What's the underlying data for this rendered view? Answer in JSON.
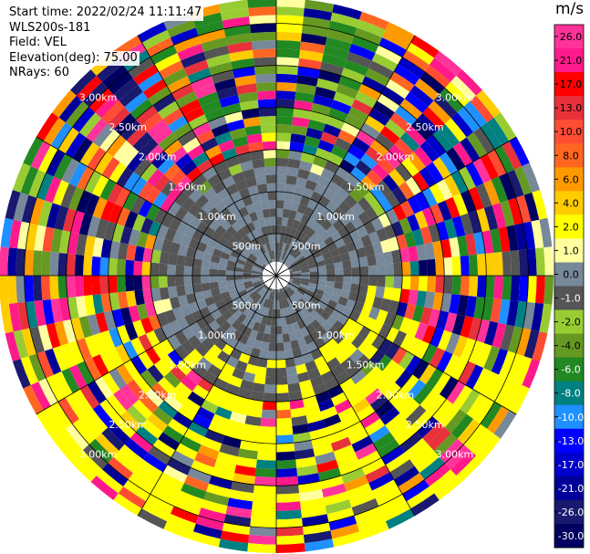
{
  "info": {
    "start_time": "Start time: 2022/02/24 11:11:47",
    "instrument": "WLS200s-181",
    "field": "Field: VEL",
    "elevation": "Elevation(deg): 75.00",
    "nrays": "NRays: 60"
  },
  "chart_data": {
    "type": "heatmap",
    "projection": "polar-ppi",
    "nrays": 60,
    "range_max_m": 3300,
    "gate_start_m": 100,
    "gate_step_m": 100,
    "ring_labels": [
      "500m",
      "1.00km",
      "1.50km",
      "2.00km",
      "2.50km",
      "3.00km"
    ],
    "ring_ranges_m": [
      500,
      1000,
      1500,
      2000,
      2500,
      3000
    ],
    "colorbar": {
      "unit": "m/s",
      "tick_labels": [
        "26.0",
        "21.0",
        "17.0",
        "13.0",
        "10.0",
        "8.0",
        "6.0",
        "4.0",
        "2.0",
        "1.0",
        "0.0",
        "-1.0",
        "-2.0",
        "-4.0",
        "-6.0",
        "-8.0",
        "-10.0",
        "-13.0",
        "-17.0",
        "-21.0",
        "-26.0",
        "-30.0"
      ],
      "bins": [
        {
          "min": 26,
          "max": 30,
          "color": "#ff3399"
        },
        {
          "min": 21,
          "max": 26,
          "color": "#ff1a8c"
        },
        {
          "min": 17,
          "max": 21,
          "color": "#ff0000"
        },
        {
          "min": 13,
          "max": 17,
          "color": "#e8313b"
        },
        {
          "min": 10,
          "max": 13,
          "color": "#ff4d33"
        },
        {
          "min": 8,
          "max": 10,
          "color": "#ff6622"
        },
        {
          "min": 6,
          "max": 8,
          "color": "#ff9900"
        },
        {
          "min": 4,
          "max": 6,
          "color": "#ffcc00"
        },
        {
          "min": 2,
          "max": 4,
          "color": "#ffff00"
        },
        {
          "min": 1,
          "max": 2,
          "color": "#ffffa0"
        },
        {
          "min": 0,
          "max": 1,
          "color": "#778899"
        },
        {
          "min": -1,
          "max": 0,
          "color": "#555555"
        },
        {
          "min": -2,
          "max": -1,
          "color": "#99cc33"
        },
        {
          "min": -4,
          "max": -2,
          "color": "#669922"
        },
        {
          "min": -6,
          "max": -4,
          "color": "#228822"
        },
        {
          "min": -8,
          "max": -6,
          "color": "#008080"
        },
        {
          "min": -10,
          "max": -8,
          "color": "#1e90ff"
        },
        {
          "min": -13,
          "max": -10,
          "color": "#0000ff"
        },
        {
          "min": -17,
          "max": -13,
          "color": "#0000cc"
        },
        {
          "min": -21,
          "max": -17,
          "color": "#000099"
        },
        {
          "min": -26,
          "max": -21,
          "color": "#191970"
        },
        {
          "min": -30,
          "max": -26,
          "color": "#000060"
        }
      ]
    },
    "pattern_note_values": {
      "inner_zone_max_m": 1500,
      "near_zero_speed": [
        -1,
        1
      ]
    }
  }
}
